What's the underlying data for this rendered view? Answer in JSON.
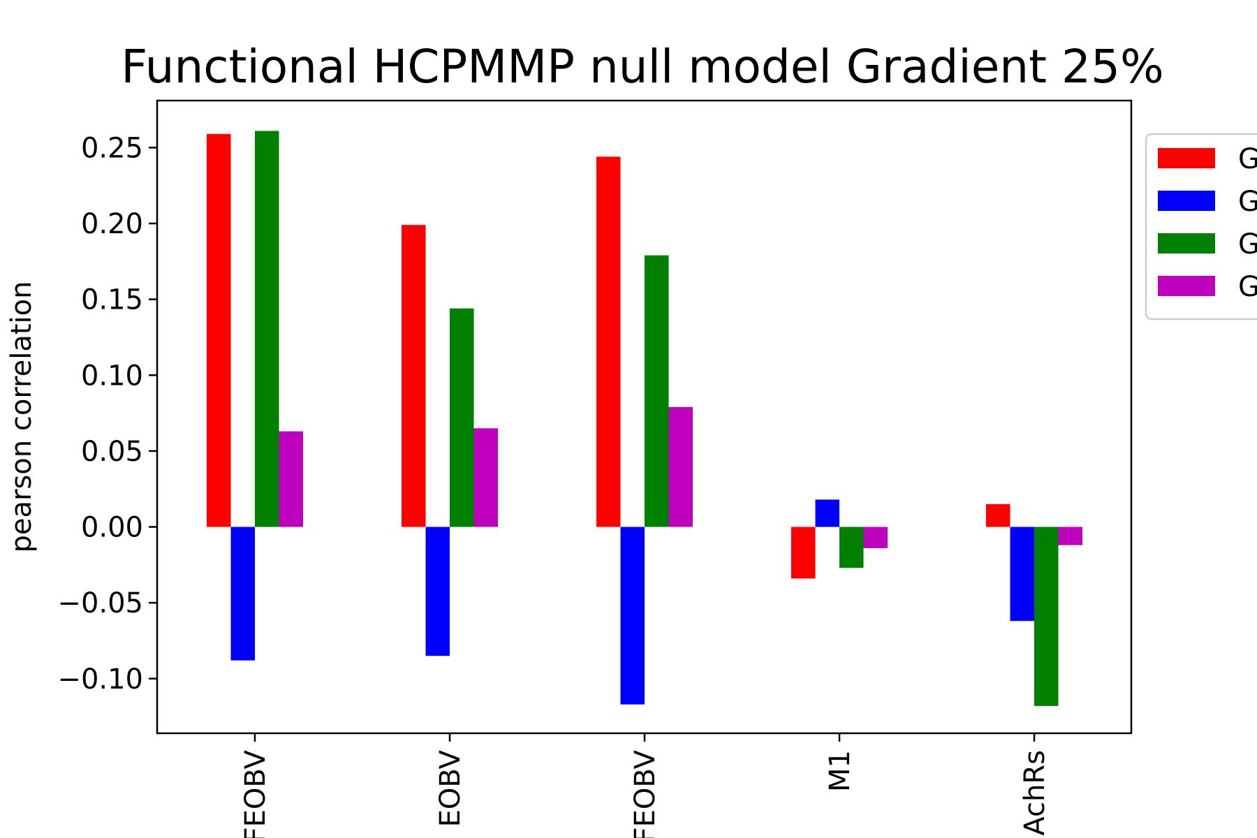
{
  "chart_data": {
    "type": "bar",
    "title": "Functional HCPMMP null model Gradient 25%",
    "xlabel": "",
    "ylabel": "pearson correlation",
    "categories": [
      "FEOBV",
      "EOBV",
      "FEOBV",
      "M1",
      "AchRs"
    ],
    "series": [
      {
        "color": "#ff0000",
        "values": [
          0.259,
          0.199,
          0.244,
          -0.034,
          0.015
        ]
      },
      {
        "color": "#0000ff",
        "values": [
          -0.088,
          -0.085,
          -0.117,
          0.018,
          -0.062
        ]
      },
      {
        "color": "#008000",
        "values": [
          0.261,
          0.144,
          0.179,
          -0.027,
          -0.118
        ]
      },
      {
        "color": "#bf00bf",
        "values": [
          0.063,
          0.065,
          0.079,
          -0.014,
          -0.012
        ]
      }
    ],
    "ylim": [
      -0.136,
      0.281
    ],
    "yticks": [
      -0.1,
      -0.05,
      0.0,
      0.05,
      0.1,
      0.15,
      0.2,
      0.25
    ],
    "ytick_labels": [
      "−0.10",
      "−0.05",
      "0.00",
      "0.05",
      "0.10",
      "0.15",
      "0.20",
      "0.25"
    ],
    "legend": {
      "placement": "outside-right",
      "entries": [
        "G",
        "G",
        "G",
        "G"
      ]
    },
    "grid": false
  }
}
